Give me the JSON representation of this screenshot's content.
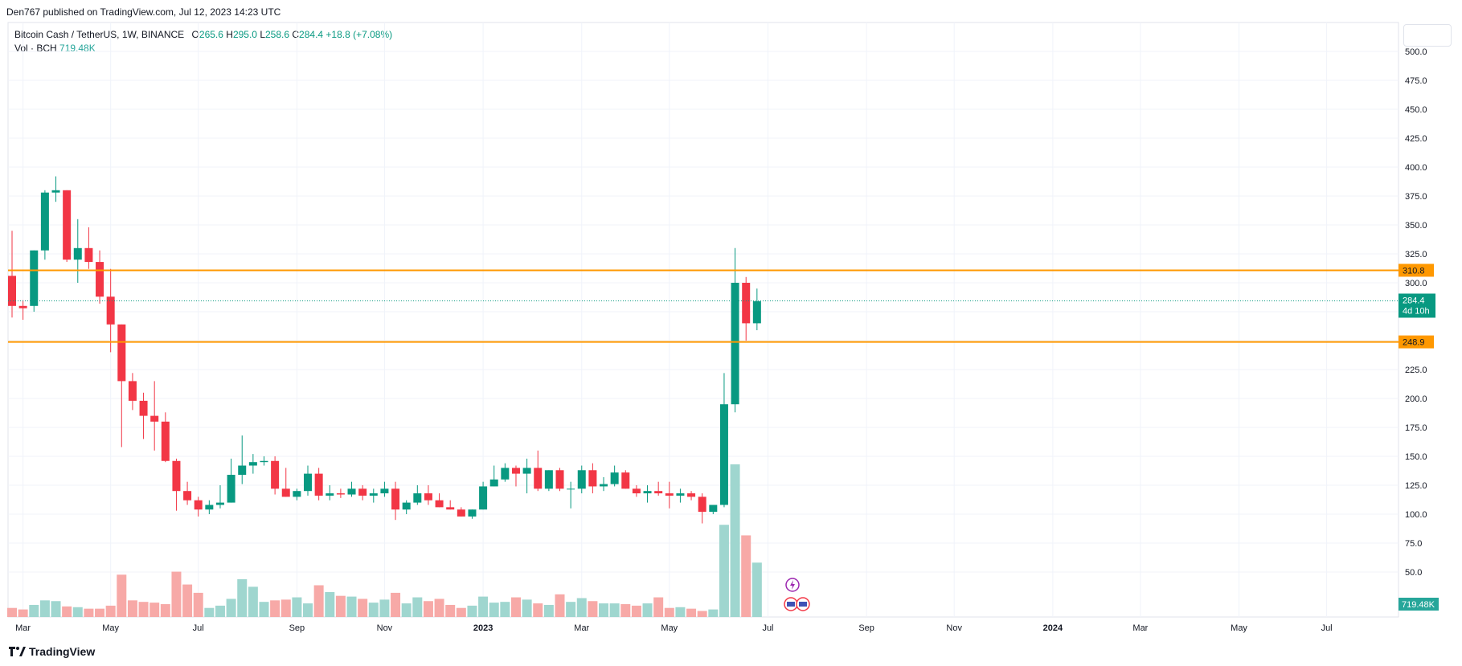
{
  "header": {
    "published": "Den767 published on TradingView.com, Jul 12, 2023 14:23 UTC"
  },
  "legend": {
    "symbol": "Bitcoin Cash / TetherUS, 1W, BINANCE",
    "o_label": "O",
    "o": "265.6",
    "h_label": "H",
    "h": "295.0",
    "l_label": "L",
    "l": "258.6",
    "c_label": "C",
    "c": "284.4",
    "change": "+18.8 (+7.08%)",
    "vol_label": "Vol · BCH",
    "vol": "719.48K"
  },
  "footer": {
    "logo_text": "TradingView"
  },
  "colors": {
    "up": "#089981",
    "down": "#f23645",
    "level": "#ff9800",
    "vol_up": "#9fd6cf",
    "vol_down": "#f7a9a7"
  },
  "icons": [
    "tradingview-logo-icon",
    "lightning-event-icon",
    "us-flag-icon"
  ],
  "chart_data": {
    "type": "candlestick",
    "ylim": [
      25,
      525
    ],
    "y_ticks": [
      "50.0",
      "75.0",
      "100.0",
      "125.0",
      "150.0",
      "175.0",
      "200.0",
      "225.0",
      "250.0",
      "275.0",
      "300.0",
      "325.0",
      "350.0",
      "375.0",
      "400.0",
      "425.0",
      "450.0",
      "475.0",
      "500.0"
    ],
    "x_ticks": [
      "Mar",
      "May",
      "Jul",
      "Sep",
      "Nov",
      "2023",
      "Mar",
      "May",
      "Jul",
      "Sep",
      "Nov",
      "2024",
      "Mar",
      "May",
      "Jul"
    ],
    "levels": [
      {
        "value": 310.8,
        "label": "310.8"
      },
      {
        "value": 248.9,
        "label": "248.9"
      }
    ],
    "last_price": {
      "value": 284.4,
      "label": "284.4",
      "countdown": "4d 10h"
    },
    "volume_label": "719.48K",
    "series": [
      {
        "name": "BCHUSDT",
        "ohlc": [
          [
            306,
            345,
            270,
            280
          ],
          [
            280,
            285,
            268,
            278
          ],
          [
            280,
            328,
            275,
            328
          ],
          [
            328,
            380,
            320,
            378
          ],
          [
            378,
            392,
            370,
            380
          ],
          [
            380,
            380,
            318,
            320
          ],
          [
            320,
            355,
            300,
            330
          ],
          [
            330,
            348,
            312,
            318
          ],
          [
            318,
            328,
            282,
            288
          ],
          [
            288,
            312,
            240,
            264
          ],
          [
            264,
            264,
            158,
            215
          ],
          [
            215,
            222,
            190,
            198
          ],
          [
            198,
            205,
            165,
            185
          ],
          [
            185,
            215,
            155,
            180
          ],
          [
            180,
            188,
            145,
            146
          ],
          [
            146,
            148,
            103,
            120
          ],
          [
            120,
            128,
            108,
            112
          ],
          [
            112,
            115,
            98,
            104
          ],
          [
            104,
            112,
            100,
            108
          ],
          [
            108,
            125,
            105,
            110
          ],
          [
            110,
            148,
            110,
            134
          ],
          [
            134,
            168,
            126,
            142
          ],
          [
            142,
            152,
            135,
            145
          ],
          [
            145,
            150,
            142,
            146
          ],
          [
            146,
            150,
            117,
            122
          ],
          [
            122,
            140,
            115,
            115
          ],
          [
            115,
            122,
            112,
            120
          ],
          [
            120,
            142,
            116,
            135
          ],
          [
            135,
            140,
            112,
            116
          ],
          [
            116,
            125,
            112,
            118
          ],
          [
            118,
            122,
            114,
            117
          ],
          [
            117,
            128,
            115,
            122
          ],
          [
            122,
            125,
            112,
            116
          ],
          [
            116,
            122,
            110,
            118
          ],
          [
            118,
            128,
            115,
            122
          ],
          [
            122,
            128,
            95,
            104
          ],
          [
            104,
            112,
            100,
            110
          ],
          [
            110,
            125,
            108,
            118
          ],
          [
            118,
            125,
            108,
            112
          ],
          [
            112,
            118,
            106,
            106
          ],
          [
            106,
            112,
            104,
            104
          ],
          [
            104,
            106,
            98,
            98
          ],
          [
            98,
            104,
            96,
            104
          ],
          [
            104,
            128,
            104,
            124
          ],
          [
            124,
            142,
            124,
            130
          ],
          [
            130,
            144,
            128,
            140
          ],
          [
            140,
            142,
            124,
            135
          ],
          [
            135,
            148,
            118,
            140
          ],
          [
            140,
            155,
            120,
            122
          ],
          [
            122,
            138,
            120,
            138
          ],
          [
            138,
            140,
            120,
            122
          ],
          [
            122,
            128,
            105,
            122
          ],
          [
            122,
            142,
            118,
            138
          ],
          [
            138,
            144,
            118,
            124
          ],
          [
            124,
            132,
            120,
            126
          ],
          [
            126,
            142,
            124,
            136
          ],
          [
            136,
            138,
            122,
            122
          ],
          [
            122,
            125,
            115,
            118
          ],
          [
            118,
            125,
            110,
            120
          ],
          [
            120,
            128,
            116,
            118
          ],
          [
            118,
            128,
            105,
            116
          ],
          [
            116,
            122,
            110,
            118
          ],
          [
            118,
            120,
            112,
            115
          ],
          [
            115,
            118,
            92,
            102
          ],
          [
            102,
            108,
            100,
            108
          ],
          [
            108,
            222,
            106,
            195
          ],
          [
            195,
            330,
            188,
            300
          ],
          [
            300,
            305,
            250,
            265
          ],
          [
            265,
            295,
            259,
            284
          ]
        ],
        "volume_k": [
          120,
          100,
          160,
          220,
          210,
          140,
          130,
          110,
          110,
          150,
          560,
          220,
          200,
          190,
          170,
          600,
          430,
          320,
          120,
          150,
          240,
          500,
          400,
          200,
          220,
          230,
          260,
          180,
          420,
          330,
          280,
          270,
          240,
          190,
          230,
          320,
          180,
          260,
          210,
          240,
          160,
          120,
          150,
          270,
          190,
          200,
          260,
          230,
          180,
          160,
          300,
          200,
          250,
          210,
          180,
          180,
          170,
          150,
          180,
          260,
          120,
          130,
          110,
          80,
          100,
          1220,
          2020,
          1080,
          719.48
        ]
      }
    ]
  }
}
